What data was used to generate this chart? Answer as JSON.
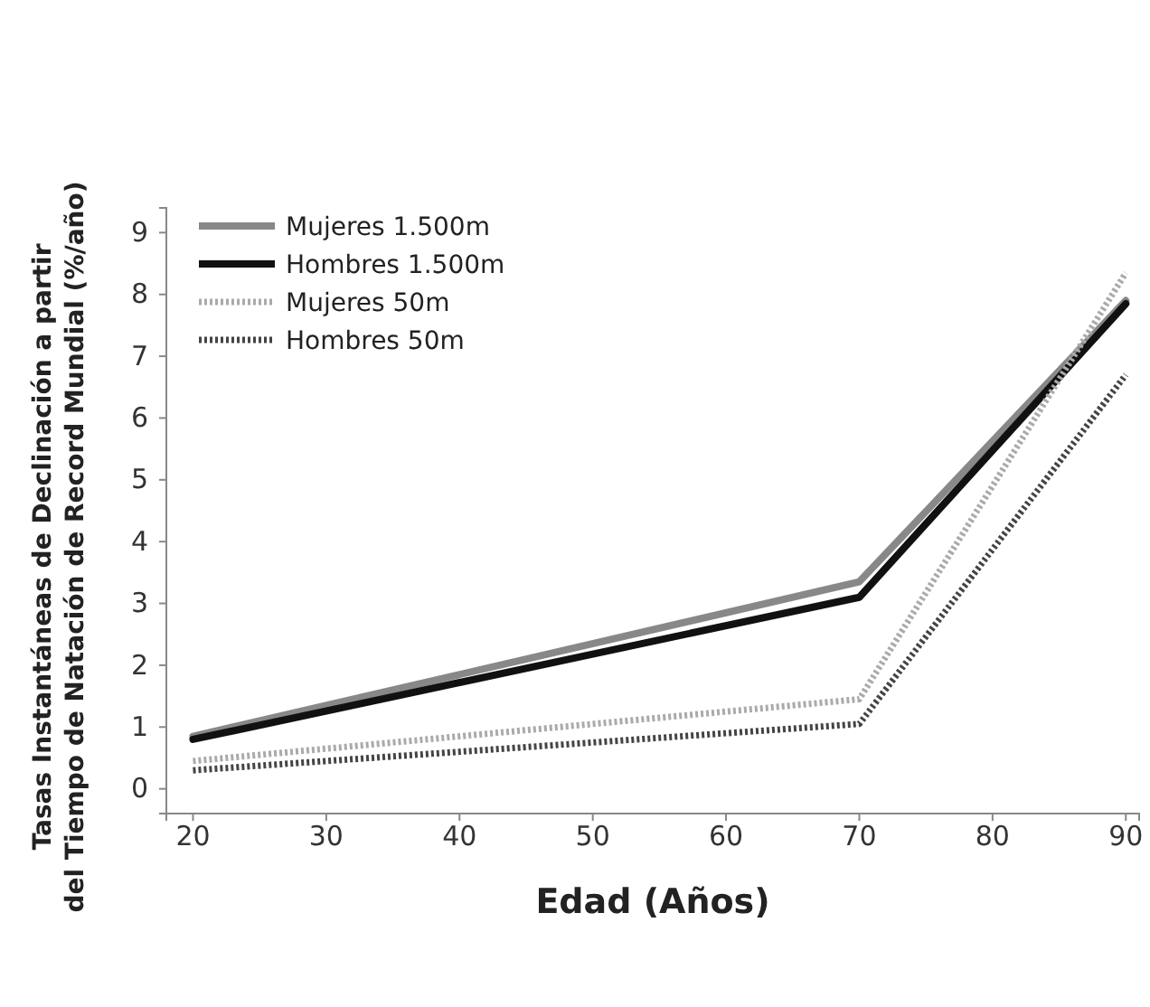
{
  "chart_data": {
    "type": "line",
    "xlabel": "Edad (Años)",
    "ylabel": "Tasas Instantáneas de Declinación a partir\ndel Tiempo de Natación de Record Mundial (%/año)",
    "x": [
      20,
      70,
      90
    ],
    "xlim": [
      18,
      91
    ],
    "xticks": [
      20,
      30,
      40,
      50,
      60,
      70,
      80,
      90
    ],
    "ylim": [
      -0.4,
      9.4
    ],
    "yticks": [
      0,
      1,
      2,
      3,
      4,
      5,
      6,
      7,
      8,
      9
    ],
    "grid": false,
    "legend": "top left",
    "marker": "none",
    "series": [
      {
        "name": "Mujeres 1.500m",
        "color": "#888888",
        "values": [
          0.85,
          3.35,
          7.9
        ],
        "line_style": "solid"
      },
      {
        "name": "Hombres 1.500m",
        "color": "#111111",
        "values": [
          0.8,
          3.1,
          7.85
        ],
        "line_style": "solid"
      },
      {
        "name": "Mujeres 50m",
        "color": "#aaaaaa",
        "values": [
          0.45,
          1.45,
          8.35
        ],
        "line_style": "dotted"
      },
      {
        "name": "Hombres 50m",
        "color": "#444444",
        "values": [
          0.3,
          1.05,
          6.7
        ],
        "line_style": "dotted"
      }
    ]
  }
}
